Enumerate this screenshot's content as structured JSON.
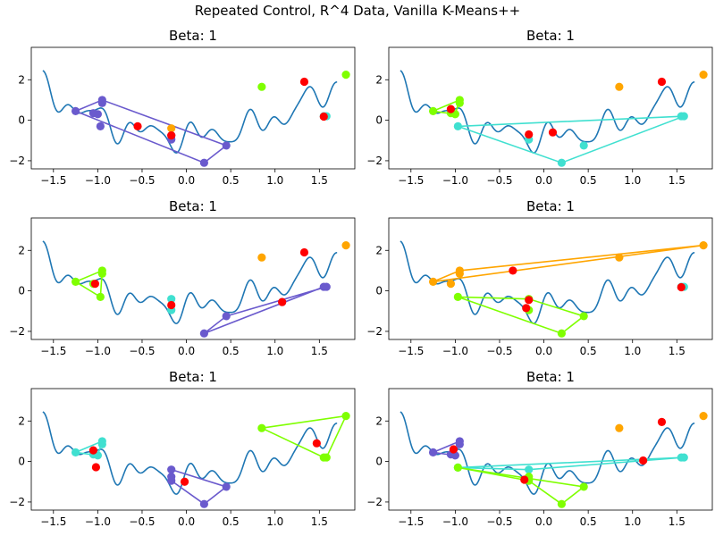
{
  "figure": {
    "title": "Repeated Control, R^4 Data, Vanilla K-Means++"
  },
  "colors": {
    "curve": "#1f77b4",
    "centroid": "#ff0000",
    "purple": "#6a5acd",
    "cyan": "#40e0d0",
    "green": "#7fff00",
    "orange": "#ffa500"
  },
  "chart_data": [
    {
      "type": "scatter",
      "title": "Beta: 1",
      "xlim": [
        -1.75,
        1.9
      ],
      "ylim": [
        -2.4,
        3.6
      ],
      "xticks": [
        -1.5,
        -1.0,
        -0.5,
        0.0,
        0.5,
        1.0,
        1.5
      ],
      "yticks": [
        -2,
        0,
        2
      ],
      "curve": {
        "x_range": [
          -1.62,
          1.7
        ]
      },
      "clusters": [
        {
          "color": "purple",
          "polygon": [
            [
              -1.25,
              0.45
            ],
            [
              -0.95,
              1.0
            ],
            [
              0.45,
              -1.25
            ],
            [
              0.2,
              -2.1
            ],
            [
              -1.25,
              0.45
            ]
          ],
          "points": [
            [
              -1.25,
              0.45
            ],
            [
              -1.05,
              0.35
            ],
            [
              -1.0,
              0.3
            ],
            [
              -0.97,
              -0.3
            ],
            [
              -0.95,
              0.85
            ],
            [
              -0.95,
              1.0
            ],
            [
              -0.17,
              -0.75
            ],
            [
              -0.17,
              -0.95
            ],
            [
              0.2,
              -2.1
            ],
            [
              0.45,
              -1.25
            ]
          ]
        },
        {
          "color": "green",
          "polygon": [],
          "points": [
            [
              0.85,
              1.65
            ],
            [
              1.8,
              2.25
            ]
          ]
        },
        {
          "color": "orange",
          "polygon": [],
          "points": [
            [
              -0.17,
              -0.4
            ]
          ]
        },
        {
          "color": "cyan",
          "polygon": [],
          "points": [
            [
              1.55,
              0.2
            ],
            [
              1.58,
              0.2
            ]
          ]
        }
      ],
      "centroids": [
        [
          -0.55,
          -0.3
        ],
        [
          -0.17,
          -0.75
        ],
        [
          1.33,
          1.9
        ],
        [
          1.55,
          0.18
        ]
      ]
    },
    {
      "type": "scatter",
      "title": "Beta: 1",
      "xlim": [
        -1.75,
        1.9
      ],
      "ylim": [
        -2.4,
        3.6
      ],
      "xticks": [
        -1.5,
        -1.0,
        -0.5,
        0.0,
        0.5,
        1.0,
        1.5
      ],
      "yticks": [
        -2,
        0,
        2
      ],
      "curve": {
        "x_range": [
          -1.62,
          1.7
        ]
      },
      "clusters": [
        {
          "color": "green",
          "polygon": [
            [
              -1.25,
              0.45
            ],
            [
              -0.95,
              1.0
            ],
            [
              -1.0,
              0.3
            ],
            [
              -1.25,
              0.45
            ]
          ],
          "points": [
            [
              -1.25,
              0.45
            ],
            [
              -1.05,
              0.35
            ],
            [
              -1.0,
              0.3
            ],
            [
              -0.95,
              0.85
            ],
            [
              -0.95,
              1.0
            ]
          ]
        },
        {
          "color": "cyan",
          "polygon": [
            [
              -0.97,
              -0.3
            ],
            [
              1.58,
              0.2
            ],
            [
              0.2,
              -2.1
            ],
            [
              -0.97,
              -0.3
            ]
          ],
          "points": [
            [
              -0.97,
              -0.3
            ],
            [
              -0.17,
              -0.95
            ],
            [
              0.2,
              -2.1
            ],
            [
              0.45,
              -1.25
            ],
            [
              1.55,
              0.2
            ],
            [
              1.58,
              0.2
            ]
          ]
        },
        {
          "color": "orange",
          "polygon": [],
          "points": [
            [
              0.85,
              1.65
            ],
            [
              1.8,
              2.25
            ]
          ]
        }
      ],
      "centroids": [
        [
          -1.05,
          0.55
        ],
        [
          -0.17,
          -0.7
        ],
        [
          0.1,
          -0.6
        ],
        [
          1.33,
          1.9
        ]
      ]
    },
    {
      "type": "scatter",
      "title": "Beta: 1",
      "xlim": [
        -1.75,
        1.9
      ],
      "ylim": [
        -2.4,
        3.6
      ],
      "xticks": [
        -1.5,
        -1.0,
        -0.5,
        0.0,
        0.5,
        1.0,
        1.5
      ],
      "yticks": [
        -2,
        0,
        2
      ],
      "curve": {
        "x_range": [
          -1.62,
          1.7
        ]
      },
      "clusters": [
        {
          "color": "green",
          "polygon": [
            [
              -1.25,
              0.45
            ],
            [
              -0.95,
              1.0
            ],
            [
              -0.97,
              -0.3
            ],
            [
              -1.25,
              0.45
            ]
          ],
          "points": [
            [
              -1.25,
              0.45
            ],
            [
              -1.05,
              0.35
            ],
            [
              -0.97,
              -0.3
            ],
            [
              -0.95,
              0.85
            ],
            [
              -0.95,
              1.0
            ]
          ]
        },
        {
          "color": "cyan",
          "polygon": [],
          "points": [
            [
              -0.17,
              -0.4
            ],
            [
              -0.17,
              -0.95
            ]
          ]
        },
        {
          "color": "purple",
          "polygon": [
            [
              0.2,
              -2.1
            ],
            [
              1.55,
              0.2
            ],
            [
              1.58,
              0.2
            ],
            [
              0.45,
              -1.25
            ],
            [
              0.2,
              -2.1
            ]
          ],
          "points": [
            [
              0.2,
              -2.1
            ],
            [
              0.45,
              -1.25
            ],
            [
              1.08,
              -0.55
            ],
            [
              1.55,
              0.2
            ],
            [
              1.58,
              0.2
            ]
          ]
        },
        {
          "color": "orange",
          "polygon": [],
          "points": [
            [
              0.85,
              1.65
            ],
            [
              1.8,
              2.25
            ]
          ]
        }
      ],
      "centroids": [
        [
          -1.03,
          0.35
        ],
        [
          -0.17,
          -0.7
        ],
        [
          1.08,
          -0.55
        ],
        [
          1.33,
          1.9
        ]
      ]
    },
    {
      "type": "scatter",
      "title": "Beta: 1",
      "xlim": [
        -1.75,
        1.9
      ],
      "ylim": [
        -2.4,
        3.6
      ],
      "xticks": [
        -1.5,
        -1.0,
        -0.5,
        0.0,
        0.5,
        1.0,
        1.5
      ],
      "yticks": [
        -2,
        0,
        2
      ],
      "curve": {
        "x_range": [
          -1.62,
          1.7
        ]
      },
      "clusters": [
        {
          "color": "orange",
          "polygon": [
            [
              -1.25,
              0.45
            ],
            [
              -0.95,
              1.0
            ],
            [
              1.8,
              2.25
            ],
            [
              -1.25,
              0.45
            ]
          ],
          "points": [
            [
              -1.25,
              0.45
            ],
            [
              -1.05,
              0.35
            ],
            [
              -0.95,
              0.85
            ],
            [
              -0.95,
              1.0
            ],
            [
              0.85,
              1.65
            ],
            [
              1.8,
              2.25
            ]
          ]
        },
        {
          "color": "green",
          "polygon": [
            [
              -0.97,
              -0.3
            ],
            [
              -0.17,
              -0.4
            ],
            [
              0.45,
              -1.25
            ],
            [
              0.2,
              -2.1
            ],
            [
              -0.97,
              -0.3
            ]
          ],
          "points": [
            [
              -0.97,
              -0.3
            ],
            [
              -0.17,
              -0.4
            ],
            [
              -0.17,
              -0.95
            ],
            [
              0.2,
              -2.1
            ],
            [
              0.45,
              -1.25
            ]
          ]
        },
        {
          "color": "cyan",
          "polygon": [],
          "points": [
            [
              1.55,
              0.2
            ],
            [
              1.58,
              0.2
            ]
          ]
        }
      ],
      "centroids": [
        [
          -0.35,
          1.0
        ],
        [
          -0.2,
          -0.85
        ],
        [
          -0.17,
          -0.45
        ],
        [
          1.55,
          0.18
        ]
      ]
    },
    {
      "type": "scatter",
      "title": "Beta: 1",
      "xlim": [
        -1.75,
        1.9
      ],
      "ylim": [
        -2.4,
        3.6
      ],
      "xticks": [
        -1.5,
        -1.0,
        -0.5,
        0.0,
        0.5,
        1.0,
        1.5
      ],
      "yticks": [
        -2,
        0,
        2
      ],
      "curve": {
        "x_range": [
          -1.62,
          1.7
        ]
      },
      "clusters": [
        {
          "color": "cyan",
          "polygon": [
            [
              -1.25,
              0.45
            ],
            [
              -0.95,
              1.0
            ],
            [
              -1.0,
              0.3
            ],
            [
              -1.25,
              0.45
            ]
          ],
          "points": [
            [
              -1.25,
              0.45
            ],
            [
              -1.05,
              0.35
            ],
            [
              -1.0,
              0.3
            ],
            [
              -0.95,
              0.85
            ],
            [
              -0.95,
              1.0
            ]
          ]
        },
        {
          "color": "purple",
          "polygon": [
            [
              -0.17,
              -0.4
            ],
            [
              0.45,
              -1.25
            ],
            [
              0.2,
              -2.1
            ],
            [
              -0.17,
              -0.95
            ],
            [
              -0.17,
              -0.4
            ]
          ],
          "points": [
            [
              -0.17,
              -0.4
            ],
            [
              -0.17,
              -0.75
            ],
            [
              -0.17,
              -0.95
            ],
            [
              0.2,
              -2.1
            ],
            [
              0.45,
              -1.25
            ]
          ]
        },
        {
          "color": "green",
          "polygon": [
            [
              0.85,
              1.65
            ],
            [
              1.8,
              2.25
            ],
            [
              1.58,
              0.2
            ],
            [
              1.55,
              0.2
            ],
            [
              0.85,
              1.65
            ]
          ],
          "points": [
            [
              0.85,
              1.65
            ],
            [
              1.8,
              2.25
            ],
            [
              1.55,
              0.2
            ],
            [
              1.58,
              0.2
            ]
          ]
        }
      ],
      "centroids": [
        [
          -1.02,
          -0.28
        ],
        [
          -1.05,
          0.55
        ],
        [
          -0.02,
          -1.0
        ],
        [
          1.47,
          0.9
        ]
      ]
    },
    {
      "type": "scatter",
      "title": "Beta: 1",
      "xlim": [
        -1.75,
        1.9
      ],
      "ylim": [
        -2.4,
        3.6
      ],
      "xticks": [
        -1.5,
        -1.0,
        -0.5,
        0.0,
        0.5,
        1.0,
        1.5
      ],
      "yticks": [
        -2,
        0,
        2
      ],
      "curve": {
        "x_range": [
          -1.62,
          1.7
        ]
      },
      "clusters": [
        {
          "color": "purple",
          "polygon": [
            [
              -1.25,
              0.45
            ],
            [
              -0.95,
              1.0
            ],
            [
              -1.0,
              0.3
            ],
            [
              -1.25,
              0.45
            ]
          ],
          "points": [
            [
              -1.25,
              0.45
            ],
            [
              -1.05,
              0.35
            ],
            [
              -1.0,
              0.3
            ],
            [
              -0.95,
              0.85
            ],
            [
              -0.95,
              1.0
            ]
          ]
        },
        {
          "color": "cyan",
          "polygon": [
            [
              -0.97,
              -0.3
            ],
            [
              1.58,
              0.2
            ],
            [
              -0.17,
              -0.4
            ],
            [
              -0.97,
              -0.3
            ]
          ],
          "points": [
            [
              -0.97,
              -0.3
            ],
            [
              -0.17,
              -0.4
            ],
            [
              1.55,
              0.2
            ],
            [
              1.58,
              0.2
            ]
          ]
        },
        {
          "color": "green",
          "polygon": [
            [
              -0.97,
              -0.3
            ],
            [
              -0.17,
              -0.95
            ],
            [
              0.2,
              -2.1
            ],
            [
              0.45,
              -1.25
            ],
            [
              -0.97,
              -0.3
            ]
          ],
          "points": [
            [
              -0.97,
              -0.3
            ],
            [
              -0.17,
              -0.75
            ],
            [
              -0.17,
              -0.95
            ],
            [
              0.2,
              -2.1
            ],
            [
              0.45,
              -1.25
            ]
          ]
        },
        {
          "color": "orange",
          "polygon": [],
          "points": [
            [
              0.85,
              1.65
            ],
            [
              1.8,
              2.25
            ]
          ]
        }
      ],
      "centroids": [
        [
          -1.02,
          0.6
        ],
        [
          -0.22,
          -0.9
        ],
        [
          1.12,
          0.05
        ],
        [
          1.33,
          1.95
        ]
      ]
    }
  ]
}
